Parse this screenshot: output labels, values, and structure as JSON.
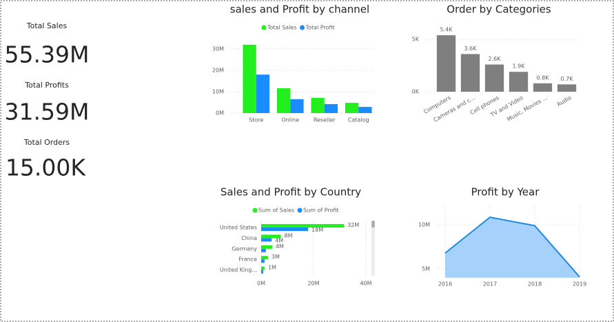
{
  "cards": [
    {
      "label": "Total Sales",
      "value": "55.39M"
    },
    {
      "label": "Total Profits",
      "value": "31.59M"
    },
    {
      "label": "Total Orders",
      "value": "15.00K"
    }
  ],
  "chart_data": [
    {
      "type": "bar",
      "title": "sales and Profit by channel",
      "categories": [
        "Store",
        "Online",
        "Reseller",
        "Catalog"
      ],
      "series": [
        {
          "name": "Total Sales",
          "color": "#22f01e",
          "values": [
            32000000,
            11600000,
            7100000,
            4800000
          ]
        },
        {
          "name": "Total Profit",
          "color": "#1a8cff",
          "values": [
            18000000,
            6500000,
            4200000,
            2900000
          ]
        }
      ],
      "ylim": [
        0,
        35000000
      ],
      "yticks": [
        {
          "value": 0,
          "label": "0M"
        },
        {
          "value": 10000000,
          "label": "10M"
        },
        {
          "value": 20000000,
          "label": "20M"
        },
        {
          "value": 30000000,
          "label": "30M"
        }
      ],
      "grid": true,
      "legend": "top"
    },
    {
      "type": "bar",
      "title": "Order by Categories",
      "categories": [
        "Computers",
        "Cameras and c...",
        "Cell phones",
        "TV and Video",
        "Music, Movies ...",
        "Audio"
      ],
      "values": [
        5400,
        3600,
        2600,
        1900,
        800,
        700
      ],
      "value_labels": [
        "5.4K",
        "3.6K",
        "2.6K",
        "1.9K",
        "0.8K",
        "0.7K"
      ],
      "color": "#7f7f7f",
      "ylim": [
        0,
        6000
      ],
      "yticks": [
        {
          "value": 0,
          "label": "0K"
        },
        {
          "value": 5000,
          "label": "5K"
        }
      ],
      "grid": true
    },
    {
      "type": "hbar",
      "title": "Sales and Profit by Country",
      "categories": [
        "United States",
        "China",
        "Germany",
        "France",
        "United King..."
      ],
      "series": [
        {
          "name": "Sum of Sales",
          "color": "#22f01e",
          "values": [
            31600000,
            7500000,
            4200000,
            2600000,
            1300000
          ],
          "value_labels": [
            "32M",
            "8M",
            "4M",
            "3M",
            "1M"
          ]
        },
        {
          "name": "Sum of Profit",
          "color": "#1a8cff",
          "values": [
            17900000,
            4000000,
            1800000,
            1300000,
            800000
          ],
          "value_labels": [
            "18M",
            "4M",
            null,
            null,
            null
          ]
        }
      ],
      "xlim": [
        0,
        40000000
      ],
      "xticks": [
        {
          "value": 0,
          "label": "0M"
        },
        {
          "value": 20000000,
          "label": "20M"
        },
        {
          "value": 40000000,
          "label": "40M"
        }
      ],
      "grid": true,
      "legend": "top"
    },
    {
      "type": "area",
      "title": "Profit by Year",
      "x": [
        2016,
        2017,
        2018,
        2019
      ],
      "values": [
        6800000,
        10860000,
        9900000,
        4100000
      ],
      "color": "#1e88e5",
      "xlim": [
        2016,
        2019
      ],
      "xticks": [
        2016,
        2017,
        2018,
        2019
      ],
      "ylim": [
        4000000,
        12300000
      ],
      "yticks": [
        {
          "value": 5000000,
          "label": "5M"
        },
        {
          "value": 10000000,
          "label": "10M"
        }
      ],
      "grid": true
    }
  ]
}
